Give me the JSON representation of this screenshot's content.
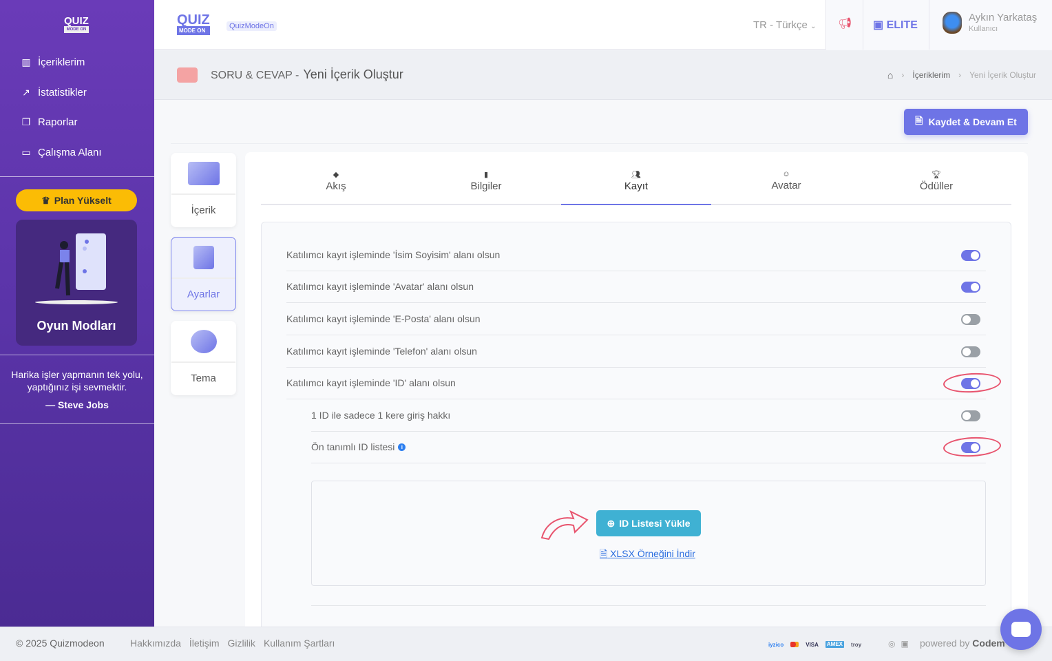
{
  "sidebar": {
    "logo_top": "QUIZ",
    "logo_bottom": "MODE ON",
    "items": [
      {
        "label": "İçeriklerim",
        "icon": "library-icon"
      },
      {
        "label": "İstatistikler",
        "icon": "chart-line-icon"
      },
      {
        "label": "Raporlar",
        "icon": "copy-icon"
      },
      {
        "label": "Çalışma Alanı",
        "icon": "briefcase-icon"
      }
    ],
    "plan_button": "Plan Yükselt",
    "modes_title": "Oyun Modları",
    "quote": "Harika işler yapmanın tek yolu, yaptığınız işi sevmektir.",
    "quote_author": "— Steve Jobs"
  },
  "topbar": {
    "logo_top": "QUIZ",
    "logo_bottom": "MODE ON",
    "workspace_badge": "QuizModeOn",
    "language": "TR - Türkçe",
    "plan": "ELITE",
    "user_name": "Aykın Yarkataş",
    "user_role": "Kullanıcı"
  },
  "header": {
    "category": "SORU & CEVAP",
    "separator": "-",
    "title": "Yeni İçerik Oluştur",
    "breadcrumb": [
      "İçeriklerim",
      "Yeni İçerik Oluştur"
    ]
  },
  "save_button": "Kaydet & Devam Et",
  "side_cards": [
    {
      "label": "İçerik"
    },
    {
      "label": "Ayarlar",
      "active": true
    },
    {
      "label": "Tema"
    }
  ],
  "tabs": [
    {
      "label": "Akış",
      "icon": "layers-icon"
    },
    {
      "label": "Bilgiler",
      "icon": "book-icon"
    },
    {
      "label": "Kayıt",
      "icon": "users-icon",
      "active": true
    },
    {
      "label": "Avatar",
      "icon": "face-icon"
    },
    {
      "label": "Ödüller",
      "icon": "trophy-icon"
    }
  ],
  "settings": [
    {
      "label": "Katılımcı kayıt işleminde 'İsim Soyisim' alanı olsun",
      "on": true
    },
    {
      "label": "Katılımcı kayıt işleminde 'Avatar' alanı olsun",
      "on": true
    },
    {
      "label": "Katılımcı kayıt işleminde 'E-Posta' alanı olsun",
      "on": false
    },
    {
      "label": "Katılımcı kayıt işleminde 'Telefon' alanı olsun",
      "on": false
    },
    {
      "label": "Katılımcı kayıt işleminde 'ID' alanı olsun",
      "on": true,
      "highlighted": true
    },
    {
      "label": "1 ID ile sadece 1 kere giriş hakkı",
      "on": false
    },
    {
      "label": "Ön tanımlı ID listesi",
      "on": true,
      "highlighted": true,
      "info": "i"
    }
  ],
  "upload": {
    "button": "ID Listesi Yükle",
    "sample_link": "XLSX Örneğini İndir"
  },
  "footer": {
    "copyright": "© 2025 Quizmodeon",
    "links": [
      "Hakkımızda",
      "İletişim",
      "Gizlilik",
      "Kullanım Şartları"
    ],
    "payments": [
      "iyzico",
      "mastercard",
      "VISA",
      "AMEX",
      "troy"
    ],
    "powered_by": "powered by",
    "company": "Codem"
  },
  "colors": {
    "accent": "#6e74e6",
    "sidebar": "#5a34a8",
    "upload_button": "#3fb1d3",
    "plan_button": "#fbbc05",
    "highlight": "#e8546e"
  }
}
